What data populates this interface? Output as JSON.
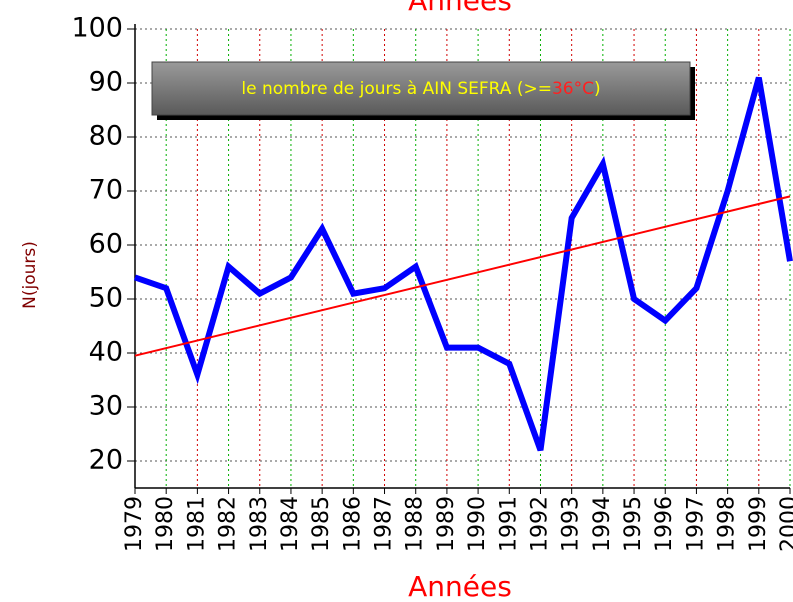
{
  "chart_data": {
    "type": "line",
    "title": "Années",
    "x_label": "Années",
    "y_label": "N(jours)",
    "box_text": [
      "le nombre de jours à AIN SEFRA (>=",
      "36°C",
      ")"
    ],
    "x": [
      1979,
      1980,
      1981,
      1982,
      1983,
      1984,
      1985,
      1986,
      1987,
      1988,
      1989,
      1990,
      1991,
      1992,
      1993,
      1994,
      1995,
      1996,
      1997,
      1998,
      1999,
      2000
    ],
    "series": [
      {
        "color": "#0000ff",
        "values": [
          54,
          52,
          36,
          56,
          51,
          54,
          63,
          51,
          52,
          56,
          41,
          41,
          38,
          22,
          65,
          75,
          50,
          46,
          52,
          70,
          91,
          57
        ]
      }
    ],
    "trend": {
      "x": [
        1979,
        2000
      ],
      "values": [
        39.5,
        69
      ],
      "color": "#ff0000"
    },
    "xlim": [
      1979,
      2000
    ],
    "xticks": [
      1979,
      1980,
      1981,
      1982,
      1983,
      1984,
      1985,
      1986,
      1987,
      1988,
      1989,
      1990,
      1991,
      1992,
      1993,
      1994,
      1995,
      1996,
      1997,
      1998,
      1999,
      2000
    ],
    "ylim": [
      15,
      100
    ],
    "yticks": [
      20,
      30,
      40,
      50,
      60,
      70,
      80,
      90,
      100
    ],
    "grid": true,
    "grid_colors": [
      "#00b000",
      "#d00000"
    ]
  }
}
